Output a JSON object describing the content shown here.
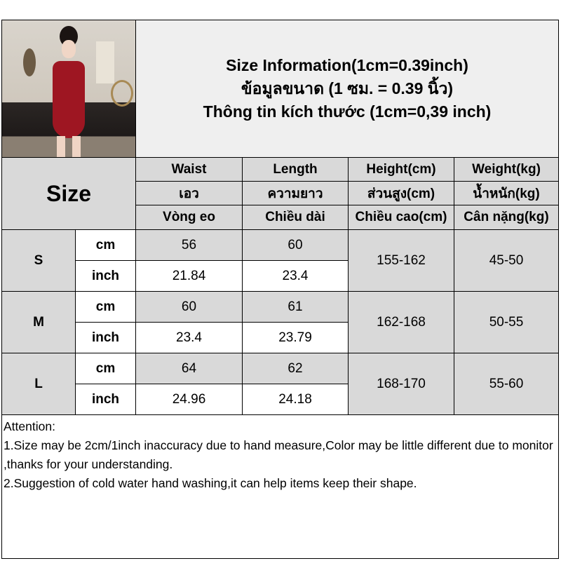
{
  "header": {
    "line1": "Size Information(1cm=0.39inch)",
    "line2": "ข้อมูลขนาด (1 ซม. = 0.39 นิ้ว)",
    "line3": "Thông tin kích thước (1cm=0,39 inch)"
  },
  "table": {
    "size_label": "Size",
    "columns": [
      {
        "en": "Waist",
        "th": "เอว",
        "vi": "Vòng eo"
      },
      {
        "en": "Length",
        "th": "ความยาว",
        "vi": "Chiều dài"
      },
      {
        "en": "Height(cm)",
        "th": "ส่วนสูง(cm)",
        "vi": "Chiều cao(cm)"
      },
      {
        "en": "Weight(kg)",
        "th": "น้ำหนัก(kg)",
        "vi": "Cân nặng(kg)"
      }
    ],
    "rows": [
      {
        "size": "S",
        "unit_cm": "cm",
        "unit_inch": "inch",
        "waist_cm": "56",
        "length_cm": "60",
        "waist_inch": "21.84",
        "length_inch": "23.4",
        "height": "155-162",
        "weight": "45-50"
      },
      {
        "size": "M",
        "unit_cm": "cm",
        "unit_inch": "inch",
        "waist_cm": "60",
        "length_cm": "61",
        "waist_inch": "23.4",
        "length_inch": "23.79",
        "height": "162-168",
        "weight": "50-55"
      },
      {
        "size": "L",
        "unit_cm": "cm",
        "unit_inch": "inch",
        "waist_cm": "64",
        "length_cm": "62",
        "waist_inch": "24.96",
        "length_inch": "24.18",
        "height": "168-170",
        "weight": "55-60"
      }
    ]
  },
  "attention": {
    "title": "Attention:",
    "line1": "1.Size may be 2cm/1inch inaccuracy due to hand measure,Color may be little different due to monitor ,thanks for your understanding.",
    "line2": "2.Suggestion of cold water hand washing,it can help items keep their shape."
  }
}
